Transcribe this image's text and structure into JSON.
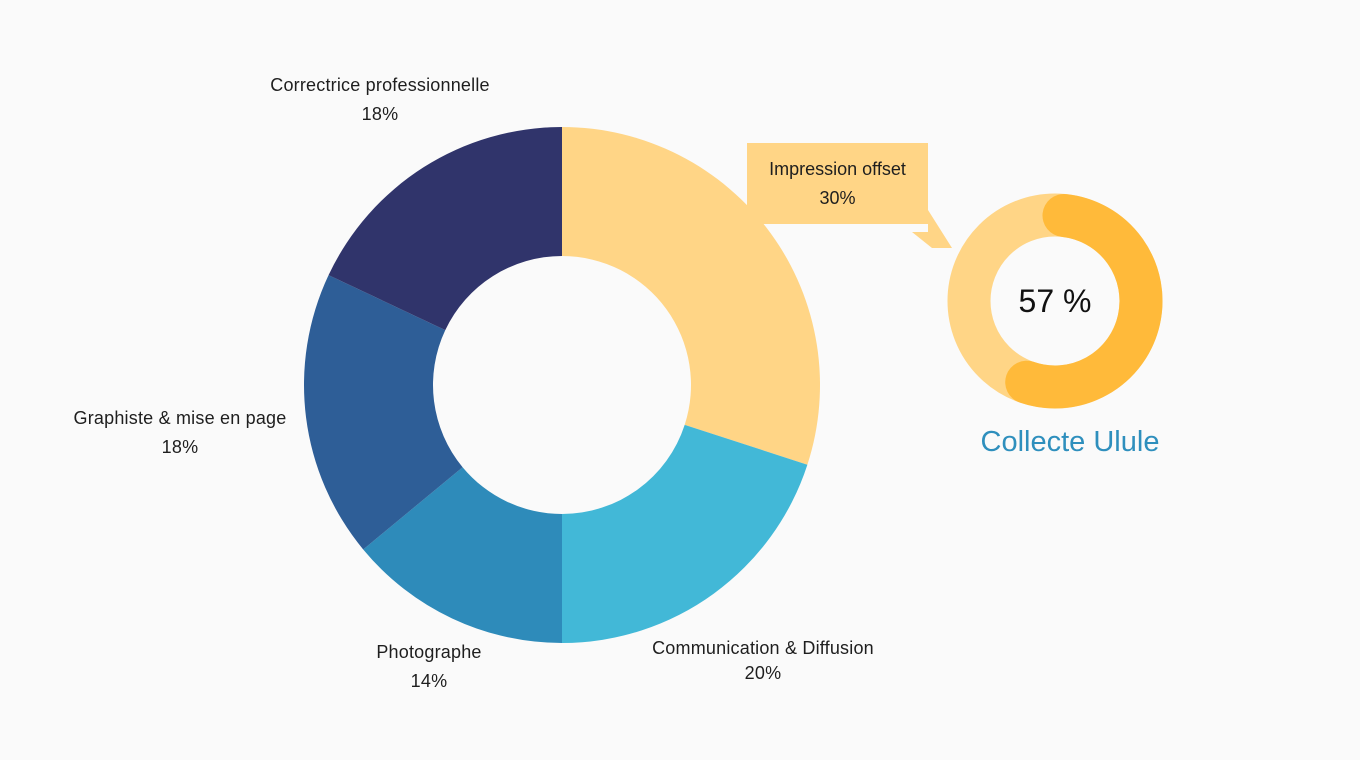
{
  "chart_data": [
    {
      "type": "pie",
      "variant": "donut",
      "title": "",
      "categories": [
        "Impression offset",
        "Communication & Diffusion",
        "Photographe",
        "Graphiste & mise en page",
        "Correctrice professionnelle"
      ],
      "values": [
        30,
        20,
        14,
        18,
        18
      ],
      "data_labels": [
        "30%",
        "20%",
        "14%",
        "18%",
        "18%"
      ],
      "colors": [
        "#ffd586",
        "#42b8d7",
        "#2e8bba",
        "#2e5e97",
        "#30346b"
      ],
      "start_angle_deg": 0,
      "direction": "clockwise",
      "legend": "none"
    },
    {
      "type": "pie",
      "variant": "progress-ring",
      "title": "Collecte Ulule",
      "value": 57,
      "value_label": "57 %",
      "colors": {
        "track": "#ffd586",
        "fill": "#ffba3a"
      }
    }
  ],
  "callout": {
    "color": "#ffd586"
  }
}
